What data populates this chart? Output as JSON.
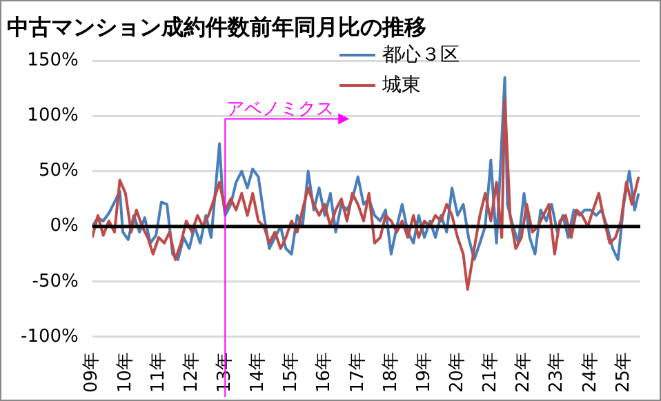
{
  "chart_data": {
    "type": "line",
    "title": "中古マンション成約件数前年同月比の推移",
    "xlim": [
      9,
      25.5
    ],
    "xticks": [
      {
        "value": 9,
        "label": "09年"
      },
      {
        "value": 10,
        "label": "10年"
      },
      {
        "value": 11,
        "label": "11年"
      },
      {
        "value": 12,
        "label": "12年"
      },
      {
        "value": 13,
        "label": "13年"
      },
      {
        "value": 14,
        "label": "14年"
      },
      {
        "value": 15,
        "label": "15年"
      },
      {
        "value": 16,
        "label": "16年"
      },
      {
        "value": 17,
        "label": "17年"
      },
      {
        "value": 18,
        "label": "18年"
      },
      {
        "value": 19,
        "label": "19年"
      },
      {
        "value": 20,
        "label": "20年"
      },
      {
        "value": 21,
        "label": "21年"
      },
      {
        "value": 22,
        "label": "22年"
      },
      {
        "value": 23,
        "label": "23年"
      },
      {
        "value": 24,
        "label": "24年"
      },
      {
        "value": 25,
        "label": "25年"
      }
    ],
    "ylim": [
      -100,
      150
    ],
    "yticks": [
      {
        "value": -100,
        "label": "-100%"
      },
      {
        "value": -50,
        "label": "-50%"
      },
      {
        "value": 0,
        "label": "0%"
      },
      {
        "value": 50,
        "label": "50%"
      },
      {
        "value": 100,
        "label": "100%"
      },
      {
        "value": 150,
        "label": "150%"
      }
    ],
    "grid": "y",
    "legend": "top",
    "marker": "none",
    "line_style": "solid",
    "ref_lines": [
      {
        "axis": "y",
        "value": 0,
        "color": "#000000"
      },
      {
        "axis": "x",
        "value": 13,
        "label": "アベノミクス",
        "color": "#ff00ff"
      }
    ],
    "series": [
      {
        "name": "都心３区",
        "color": "#4a7ebb",
        "x": [
          9.0,
          9.17,
          9.33,
          9.5,
          9.67,
          9.83,
          9.92,
          10.08,
          10.25,
          10.42,
          10.58,
          10.75,
          10.92,
          11.08,
          11.25,
          11.42,
          11.58,
          11.75,
          11.92,
          12.08,
          12.25,
          12.42,
          12.58,
          12.67,
          12.83,
          12.92,
          13.0,
          13.17,
          13.33,
          13.5,
          13.67,
          13.83,
          14.0,
          14.17,
          14.33,
          14.5,
          14.67,
          14.83,
          15.0,
          15.17,
          15.33,
          15.5,
          15.67,
          15.83,
          16.0,
          16.17,
          16.33,
          16.5,
          16.67,
          16.83,
          17.0,
          17.17,
          17.33,
          17.5,
          17.67,
          17.83,
          18.0,
          18.17,
          18.33,
          18.5,
          18.67,
          18.83,
          19.0,
          19.17,
          19.33,
          19.5,
          19.67,
          19.83,
          20.0,
          20.17,
          20.33,
          20.5,
          20.67,
          20.83,
          21.0,
          21.17,
          21.25,
          21.42,
          21.5,
          21.67,
          21.83,
          22.0,
          22.17,
          22.33,
          22.5,
          22.67,
          22.83,
          23.0,
          23.17,
          23.33,
          23.5,
          23.67,
          23.83,
          24.0,
          24.17,
          24.33,
          24.5,
          24.67,
          24.83,
          25.0,
          25.17,
          25.33,
          25.45
        ],
        "values": [
          0,
          8,
          5,
          12,
          22,
          32,
          -5,
          -12,
          10,
          -5,
          8,
          -15,
          -8,
          22,
          20,
          -25,
          -30,
          -10,
          -20,
          0,
          -15,
          10,
          -10,
          20,
          75,
          30,
          10,
          20,
          40,
          50,
          35,
          52,
          45,
          10,
          -20,
          -10,
          0,
          -20,
          -25,
          10,
          0,
          50,
          15,
          35,
          10,
          30,
          -5,
          20,
          15,
          25,
          45,
          20,
          25,
          10,
          5,
          15,
          -25,
          0,
          20,
          -5,
          -15,
          10,
          -10,
          5,
          -10,
          10,
          -5,
          35,
          10,
          20,
          -10,
          -30,
          -15,
          0,
          60,
          -15,
          30,
          135,
          20,
          0,
          -15,
          30,
          -10,
          -25,
          15,
          5,
          20,
          -5,
          10,
          -10,
          15,
          10,
          15,
          15,
          10,
          15,
          0,
          -20,
          -30,
          20,
          50,
          15,
          30
        ]
      },
      {
        "name": "城東",
        "color": "#be4b48",
        "x": [
          9.0,
          9.17,
          9.33,
          9.5,
          9.67,
          9.83,
          10.0,
          10.17,
          10.33,
          10.5,
          10.67,
          10.83,
          11.0,
          11.17,
          11.33,
          11.5,
          11.67,
          11.83,
          12.0,
          12.17,
          12.33,
          12.5,
          12.67,
          12.83,
          13.0,
          13.17,
          13.33,
          13.5,
          13.67,
          13.83,
          14.0,
          14.17,
          14.33,
          14.5,
          14.67,
          14.83,
          15.0,
          15.17,
          15.33,
          15.5,
          15.67,
          15.83,
          16.0,
          16.17,
          16.33,
          16.5,
          16.67,
          16.83,
          17.0,
          17.17,
          17.33,
          17.5,
          17.67,
          17.83,
          18.0,
          18.17,
          18.33,
          18.5,
          18.67,
          18.83,
          19.0,
          19.17,
          19.33,
          19.5,
          19.67,
          19.83,
          20.0,
          20.17,
          20.3,
          20.5,
          20.67,
          20.83,
          21.0,
          21.17,
          21.33,
          21.42,
          21.58,
          21.75,
          21.92,
          22.08,
          22.25,
          22.42,
          22.58,
          22.75,
          22.92,
          23.08,
          23.25,
          23.42,
          23.58,
          23.75,
          23.92,
          24.08,
          24.25,
          24.42,
          24.58,
          24.75,
          24.92,
          25.08,
          25.25,
          25.45
        ],
        "values": [
          -10,
          10,
          -8,
          5,
          -5,
          42,
          30,
          -5,
          15,
          0,
          -10,
          -25,
          -10,
          -15,
          -5,
          -30,
          -15,
          5,
          -5,
          10,
          0,
          10,
          25,
          40,
          15,
          25,
          15,
          30,
          10,
          30,
          5,
          0,
          -15,
          -5,
          -20,
          -10,
          5,
          -5,
          15,
          35,
          20,
          10,
          20,
          0,
          15,
          25,
          5,
          30,
          20,
          5,
          30,
          -15,
          -10,
          10,
          5,
          -5,
          5,
          -10,
          10,
          -10,
          5,
          0,
          10,
          5,
          20,
          10,
          -10,
          -25,
          -57,
          -20,
          10,
          30,
          5,
          40,
          -10,
          115,
          10,
          -20,
          -10,
          20,
          -5,
          0,
          10,
          20,
          -25,
          5,
          10,
          -10,
          15,
          10,
          0,
          15,
          30,
          5,
          -15,
          -10,
          5,
          40,
          20,
          45
        ]
      }
    ]
  }
}
